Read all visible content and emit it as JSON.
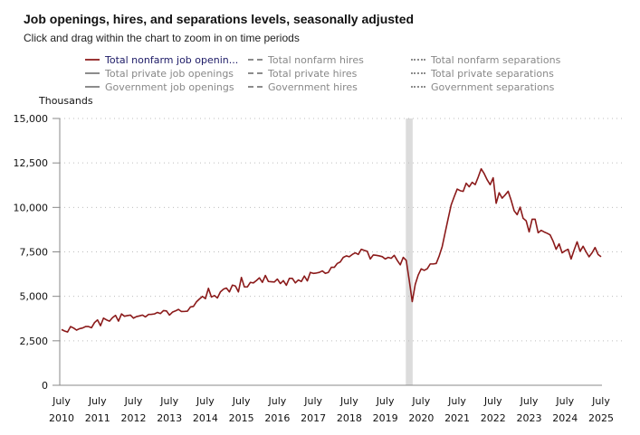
{
  "header": {
    "title": "Job openings, hires, and separations levels, seasonally adjusted",
    "subtitle": "Click and drag within the chart to zoom in on time periods"
  },
  "legend": {
    "items": [
      {
        "label": "Total nonfarm job openin...",
        "style": "solid",
        "active": true,
        "color": "#9a3535"
      },
      {
        "label": "Total private job openings",
        "style": "solid",
        "active": false,
        "color": "#8c8c8c"
      },
      {
        "label": "Government job openings",
        "style": "solid",
        "active": false,
        "color": "#8c8c8c"
      },
      {
        "label": "Total nonfarm hires",
        "style": "dashed",
        "active": false,
        "color": "#8c8c8c"
      },
      {
        "label": "Total private hires",
        "style": "dashed",
        "active": false,
        "color": "#8c8c8c"
      },
      {
        "label": "Government hires",
        "style": "dashed",
        "active": false,
        "color": "#8c8c8c"
      },
      {
        "label": "Total nonfarm separations",
        "style": "dotted",
        "active": false,
        "color": "#8c8c8c"
      },
      {
        "label": "Total private separations",
        "style": "dotted",
        "active": false,
        "color": "#8c8c8c"
      },
      {
        "label": "Government separations",
        "style": "dotted",
        "active": false,
        "color": "#8c8c8c"
      }
    ]
  },
  "colors": {
    "series_line": "#8b1a1a",
    "recession_band": "#dcdcdc",
    "axis": "#888888",
    "grid": "#bdbdbd"
  },
  "chart_data": {
    "type": "line",
    "title": "Job openings, hires, and separations levels, seasonally adjusted",
    "subtitle": "Click and drag within the chart to zoom in on time periods",
    "ylabel": "Thousands",
    "xlabel": "",
    "ylim": [
      0,
      15000
    ],
    "yticks": [
      0,
      2500,
      5000,
      7500,
      10000,
      12500,
      15000
    ],
    "ytick_labels": [
      "0",
      "2,500",
      "5,000",
      "7,500",
      "10,000",
      "12,500",
      "15,000"
    ],
    "x_start": "2010-07",
    "x_end": "2025-07",
    "x_frequency": "monthly",
    "xticks": [
      {
        "month": "July",
        "year": "2010"
      },
      {
        "month": "July",
        "year": "2011"
      },
      {
        "month": "July",
        "year": "2012"
      },
      {
        "month": "July",
        "year": "2013"
      },
      {
        "month": "July",
        "year": "2014"
      },
      {
        "month": "July",
        "year": "2015"
      },
      {
        "month": "July",
        "year": "2016"
      },
      {
        "month": "July",
        "year": "2017"
      },
      {
        "month": "July",
        "year": "2018"
      },
      {
        "month": "July",
        "year": "2019"
      },
      {
        "month": "July",
        "year": "2020"
      },
      {
        "month": "July",
        "year": "2021"
      },
      {
        "month": "July",
        "year": "2022"
      },
      {
        "month": "July",
        "year": "2023"
      },
      {
        "month": "July",
        "year": "2024"
      },
      {
        "month": "July",
        "year": "2025"
      }
    ],
    "grid": "horizontal-dotted",
    "legend_position": "top",
    "shaded_periods": [
      {
        "label": "Recession",
        "start": "2020-02",
        "end": "2020-04"
      }
    ],
    "series": [
      {
        "name": "Total nonfarm job openings",
        "values": [
          3135,
          3050,
          2995,
          3300,
          3220,
          3100,
          3180,
          3220,
          3300,
          3300,
          3235,
          3525,
          3675,
          3350,
          3775,
          3675,
          3605,
          3800,
          3930,
          3605,
          4010,
          3880,
          3920,
          3945,
          3775,
          3860,
          3900,
          3945,
          3845,
          3980,
          3990,
          4010,
          4095,
          4030,
          4200,
          4180,
          3945,
          4110,
          4180,
          4265,
          4145,
          4150,
          4165,
          4400,
          4435,
          4690,
          4850,
          4995,
          4870,
          5450,
          4960,
          5045,
          4910,
          5250,
          5400,
          5465,
          5250,
          5630,
          5580,
          5250,
          6060,
          5530,
          5530,
          5785,
          5755,
          5885,
          6040,
          5785,
          6175,
          5835,
          5820,
          5805,
          5970,
          5720,
          5885,
          5620,
          6010,
          6010,
          5755,
          5920,
          5835,
          6140,
          5870,
          6345,
          6290,
          6310,
          6345,
          6430,
          6290,
          6345,
          6630,
          6630,
          6850,
          6935,
          7190,
          7275,
          7225,
          7355,
          7445,
          7355,
          7645,
          7580,
          7530,
          7100,
          7325,
          7305,
          7275,
          7230,
          7100,
          7190,
          7140,
          7305,
          7020,
          6770,
          7190,
          7020,
          5900,
          4705,
          5670,
          6200,
          6545,
          6460,
          6550,
          6820,
          6820,
          6850,
          7275,
          7800,
          8600,
          9385,
          10145,
          10600,
          11030,
          10940,
          10900,
          11360,
          11160,
          11410,
          11280,
          11700,
          12170,
          11900,
          11550,
          11280,
          11665,
          10230,
          10825,
          10520,
          10700,
          10905,
          10400,
          9810,
          9590,
          10015,
          9385,
          9250,
          8625,
          9335,
          9335,
          8575,
          8710,
          8620,
          8545,
          8455,
          8100,
          7645,
          7950,
          7445,
          7560,
          7645,
          7100,
          7600,
          8065,
          7530,
          7815,
          7500,
          7225,
          7450,
          7745,
          7355,
          7225
        ]
      }
    ]
  }
}
